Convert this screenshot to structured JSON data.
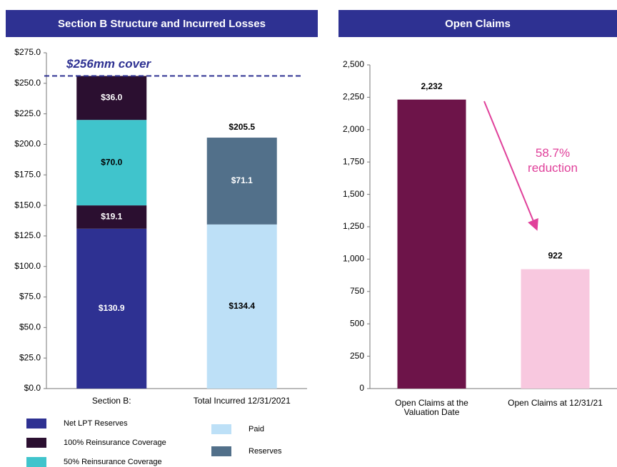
{
  "chart_data": [
    {
      "type": "stacked_bar",
      "title": "Section B Structure and Incurred Losses",
      "categories": [
        "Section B:",
        "Total Incurred 12/31/2021"
      ],
      "series": [
        {
          "name": "Net LPT Reserves",
          "color": "#2e3192"
        },
        {
          "name": "100% Reinsurance Coverage",
          "color": "#2b0f30"
        },
        {
          "name": "50% Reinsurance Coverage",
          "color": "#40c4cc"
        },
        {
          "name": "Paid",
          "color": "#bde0f7"
        },
        {
          "name": "Reserves",
          "color": "#52708a"
        }
      ],
      "stacks": [
        {
          "segments": [
            {
              "series": 0,
              "value": 130.9,
              "value_label": "$130.9"
            },
            {
              "series": 1,
              "value": 19.1,
              "value_label": "$19.1"
            },
            {
              "series": 2,
              "value": 70.0,
              "value_label": "$70.0"
            },
            {
              "series": 1,
              "value": 36.0,
              "value_label": "$36.0"
            }
          ]
        },
        {
          "segments": [
            {
              "series": 3,
              "value": 134.4,
              "value_label": "$134.4"
            },
            {
              "series": 4,
              "value": 71.1,
              "value_label": "$71.1"
            }
          ],
          "total": 205.5,
          "total_label": "$205.5"
        }
      ],
      "reference_line": {
        "value": 256,
        "label": "$256mm cover",
        "color": "#2e3192"
      },
      "ylim": [
        0,
        275
      ],
      "yticks": [
        {
          "value": 0,
          "label": "$0.0"
        },
        {
          "value": 25,
          "label": "$25.0"
        },
        {
          "value": 50,
          "label": "$50.0"
        },
        {
          "value": 75,
          "label": "$75.0"
        },
        {
          "value": 100,
          "label": "$100.0"
        },
        {
          "value": 125,
          "label": "$125.0"
        },
        {
          "value": 150,
          "label": "$150.0"
        },
        {
          "value": 175,
          "label": "$175.0"
        },
        {
          "value": 200,
          "label": "$200.0"
        },
        {
          "value": 225,
          "label": "$225.0"
        },
        {
          "value": 250,
          "label": "$250.0"
        },
        {
          "value": 275,
          "label": "$275.0"
        }
      ]
    },
    {
      "type": "bar",
      "title": "Open Claims",
      "categories": [
        "Open Claims at the Valuation Date",
        "Open Claims at 12/31/21"
      ],
      "values": [
        2232,
        922
      ],
      "value_labels": [
        "2,232",
        "922"
      ],
      "colors": [
        "#6d1449",
        "#f8c8df"
      ],
      "annotation": "58.7% reduction",
      "annotation_color": "#e0409a",
      "ylim": [
        0,
        2500
      ],
      "yticks": [
        0,
        250,
        500,
        750,
        {
          "value": 1000,
          "label": "1,000"
        },
        {
          "value": 1250,
          "label": "1,250"
        },
        {
          "value": 1500,
          "label": "1,500"
        },
        {
          "value": 1750,
          "label": "1,750"
        },
        {
          "value": 2000,
          "label": "2,000"
        },
        {
          "value": 2250,
          "label": "2,250"
        },
        {
          "value": 2500,
          "label": "2,500"
        }
      ]
    }
  ]
}
